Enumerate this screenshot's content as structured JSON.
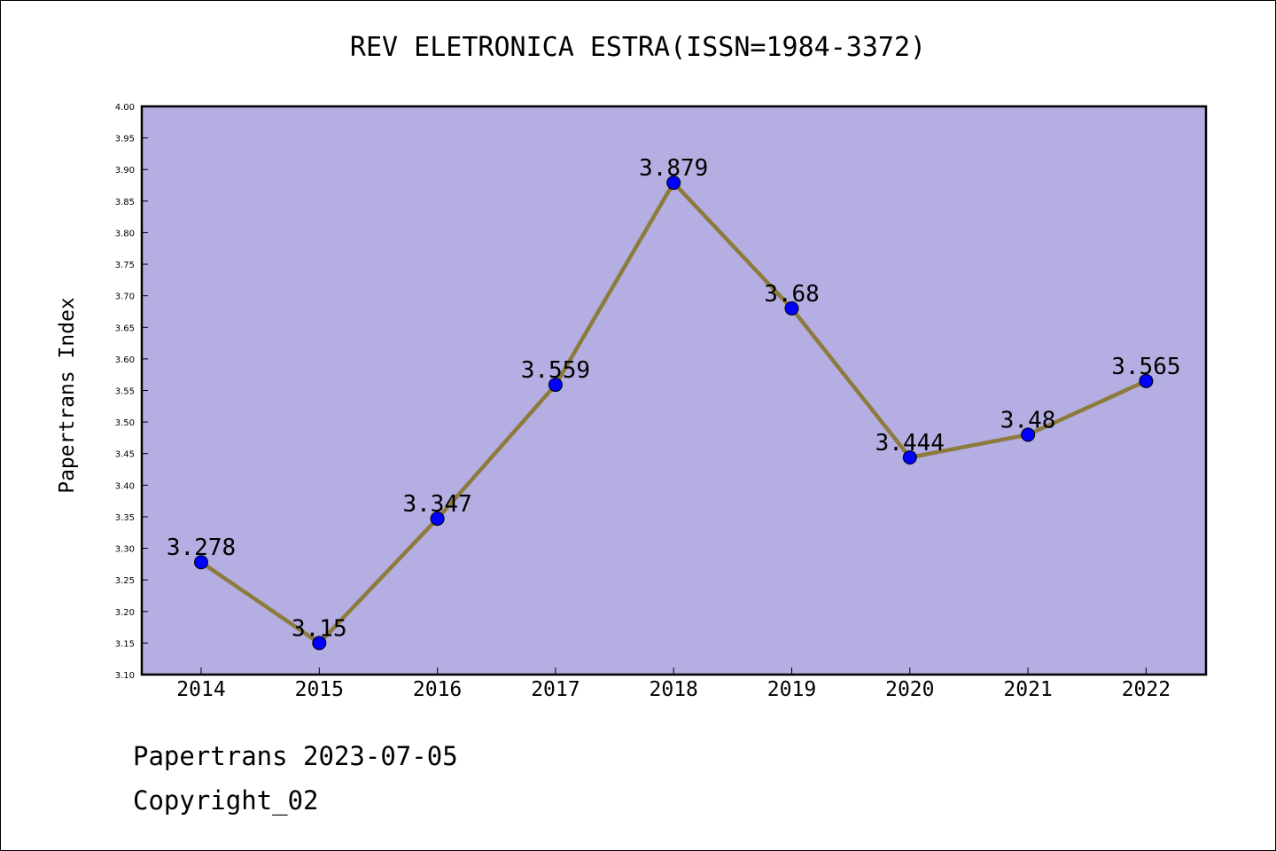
{
  "chart_data": {
    "type": "line",
    "title": "REV ELETRONICA ESTRA(ISSN=1984-3372)",
    "xlabel": "",
    "ylabel": "Papertrans Index",
    "categories": [
      "2014",
      "2015",
      "2016",
      "2017",
      "2018",
      "2019",
      "2020",
      "2021",
      "2022"
    ],
    "values": [
      3.278,
      3.15,
      3.347,
      3.559,
      3.879,
      3.68,
      3.444,
      3.48,
      3.565
    ],
    "data_labels": [
      "3.278",
      "3.15",
      "3.347",
      "3.559",
      "3.879",
      "3.68",
      "3.444",
      "3.48",
      "3.565"
    ],
    "ylim": [
      3.1,
      4.0
    ],
    "yticks": [
      "3.10",
      "3.15",
      "3.20",
      "3.25",
      "3.30",
      "3.35",
      "3.40",
      "3.45",
      "3.50",
      "3.55",
      "3.60",
      "3.65",
      "3.70",
      "3.75",
      "3.80",
      "3.85",
      "3.90",
      "3.95",
      "4.00"
    ],
    "grid": false,
    "colors": {
      "plot_background": "#b4aee2",
      "line": "#8c7b3c",
      "marker": "#0000ff"
    }
  },
  "footer": {
    "line1": "Papertrans 2023-07-05",
    "line2": "Copyright_02"
  }
}
